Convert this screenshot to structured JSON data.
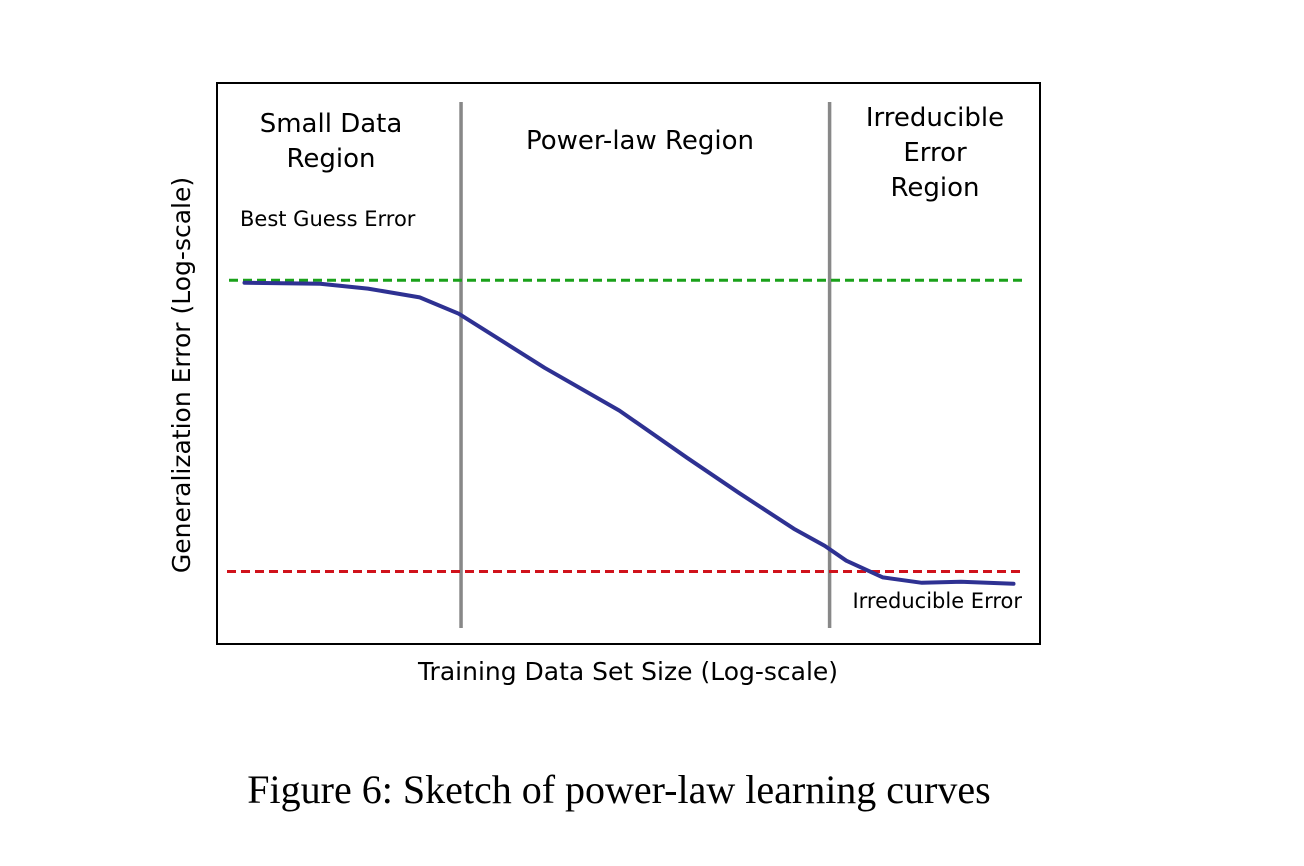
{
  "caption": "Figure 6: Sketch of power-law learning curves",
  "colors": {
    "curve": "#2e3192",
    "best_guess_line": "#1aa11a",
    "irreducible_line": "#d0121b",
    "region_divider": "#888888",
    "frame": "#000000"
  },
  "chart_data": {
    "type": "line",
    "xlabel": "Training Data Set Size (Log-scale)",
    "ylabel": "Generalization Error (Log-scale)",
    "xscale": "log",
    "yscale": "log",
    "ticks": "none",
    "grid": false,
    "legend": "none",
    "xlim": [
      0,
      100
    ],
    "ylim": [
      0,
      100
    ],
    "region_boundaries_x": [
      28.9,
      75.2
    ],
    "regions": [
      {
        "lines": [
          "Small Data",
          "Region"
        ]
      },
      {
        "lines": [
          "Power-law Region"
        ]
      },
      {
        "lines": [
          "Irreducible",
          "Error",
          "Region"
        ]
      }
    ],
    "reference_lines": {
      "best_guess": {
        "label": "Best Guess Error",
        "y": 71.5
      },
      "irreducible": {
        "label": "Irreducible Error",
        "y": 12.3
      }
    },
    "series": [
      {
        "x": [
          1.7,
          11.2,
          17.2,
          23.7,
          28.6,
          34.4,
          39.4,
          48.8,
          57.3,
          63.8,
          70.7,
          74.6,
          77.3,
          81.9,
          86.8,
          91.7,
          98.3
        ],
        "y": [
          71.0,
          70.8,
          69.8,
          68.0,
          64.7,
          58.8,
          53.7,
          45.0,
          35.4,
          28.3,
          21.0,
          17.5,
          14.5,
          11.1,
          10.0,
          10.2,
          9.8
        ]
      }
    ]
  }
}
